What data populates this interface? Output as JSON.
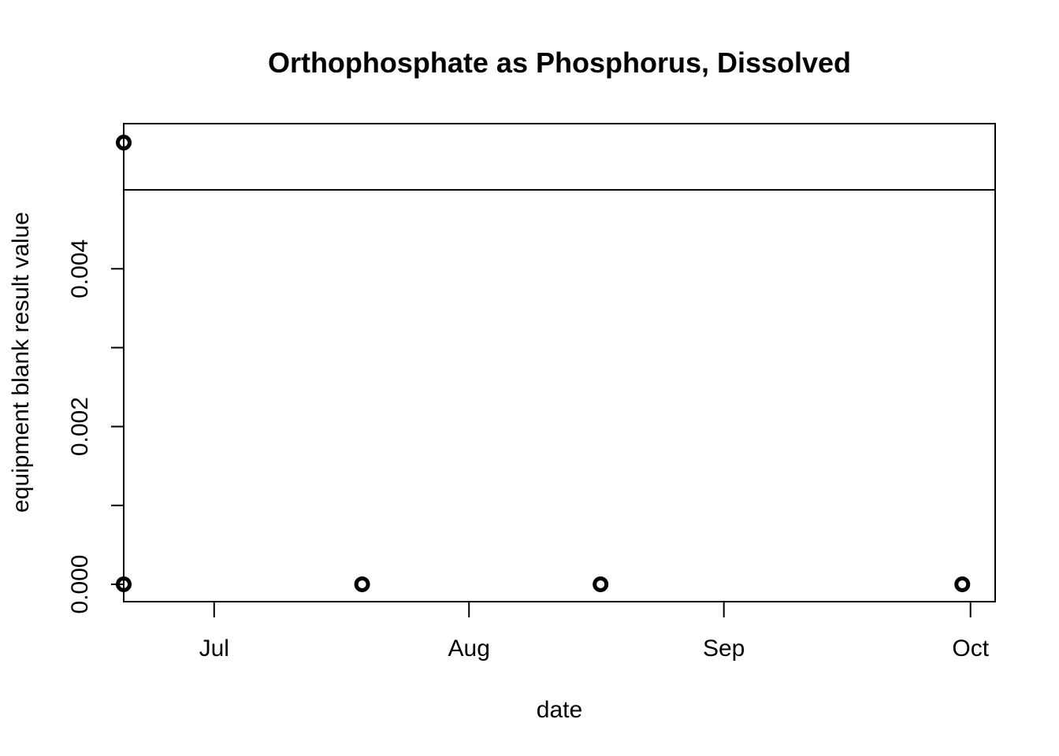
{
  "chart_data": {
    "type": "scatter",
    "title": "Orthophosphate as Phosphorus, Dissolved",
    "xlabel": "date",
    "ylabel": "equipment blank result value",
    "x_axis": {
      "type": "date",
      "range": [
        "2023-06-20",
        "2023-10-04"
      ],
      "ticks": [
        {
          "value": "2023-07-01",
          "label": "Jul"
        },
        {
          "value": "2023-08-01",
          "label": "Aug"
        },
        {
          "value": "2023-09-01",
          "label": "Sep"
        },
        {
          "value": "2023-10-01",
          "label": "Oct"
        }
      ]
    },
    "y_axis": {
      "range": [
        -0.00022,
        0.00584
      ],
      "ticks": [
        {
          "value": 0.0,
          "label": "0.000"
        },
        {
          "value": 0.001,
          "label": ""
        },
        {
          "value": 0.002,
          "label": "0.002"
        },
        {
          "value": 0.003,
          "label": ""
        },
        {
          "value": 0.004,
          "label": "0.004"
        }
      ]
    },
    "grid": false,
    "reference_lines": [
      {
        "orientation": "horizontal",
        "y": 0.005
      }
    ],
    "points": [
      {
        "x": "2023-06-20",
        "y": 0.0056
      },
      {
        "x": "2023-06-20",
        "y": 0.0
      },
      {
        "x": "2023-07-19",
        "y": 0.0
      },
      {
        "x": "2023-08-17",
        "y": 0.0
      },
      {
        "x": "2023-09-30",
        "y": 0.0
      }
    ],
    "marker_color": "#000000"
  }
}
